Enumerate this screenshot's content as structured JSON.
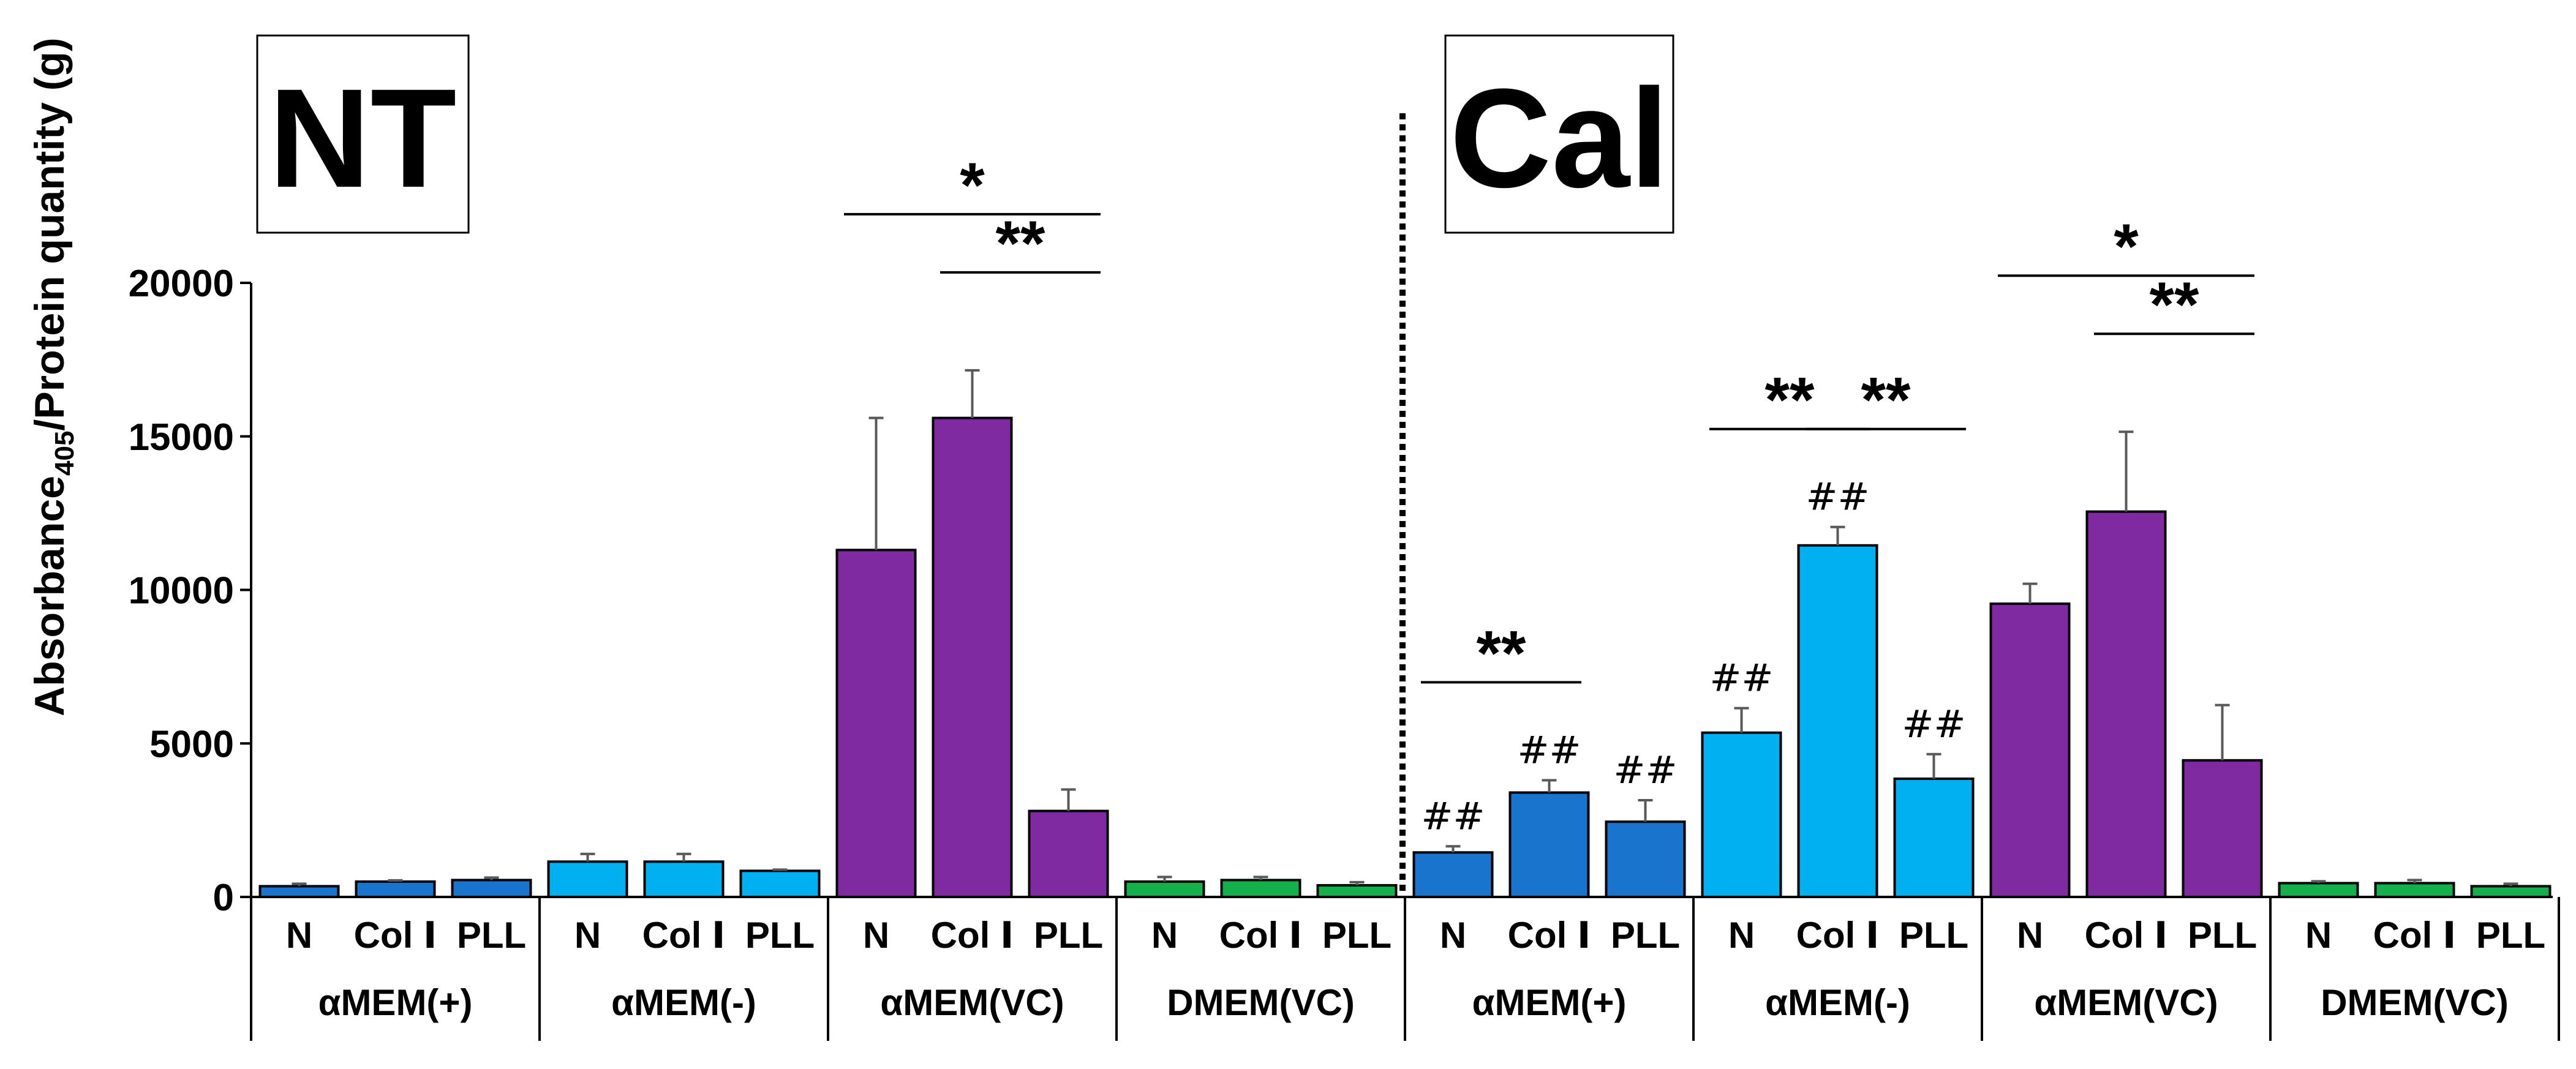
{
  "chart_data": {
    "type": "bar",
    "ylabel_main": "Absorbance",
    "ylabel_sub": "405",
    "ylabel_tail": "/Protein quantity (g)",
    "ylim": [
      0,
      20000
    ],
    "yticks": [
      0,
      5000,
      10000,
      15000,
      20000
    ],
    "yticks_text": [
      "0",
      "5000",
      "10000",
      "15000",
      "20000"
    ],
    "panels": [
      {
        "label": "NT",
        "groups": [
          {
            "name": "αMEM(+)",
            "color": "#1874CD",
            "categories": [
              "N",
              "Col Ⅰ",
              "PLL"
            ],
            "values": [
              350,
              500,
              550
            ],
            "errors": [
              80,
              40,
              80
            ],
            "marks": [
              "",
              "",
              ""
            ]
          },
          {
            "name": "αMEM(-)",
            "color": "#00B0F0",
            "categories": [
              "N",
              "Col Ⅰ",
              "PLL"
            ],
            "values": [
              1150,
              1150,
              850
            ],
            "errors": [
              250,
              250,
              40
            ],
            "marks": [
              "",
              "",
              ""
            ]
          },
          {
            "name": "αMEM(VC)",
            "color": "#7F2AA0",
            "categories": [
              "N",
              "Col Ⅰ",
              "PLL"
            ],
            "values": [
              11300,
              15600,
              2800
            ],
            "errors": [
              4300,
              1550,
              700
            ],
            "marks": [
              "",
              "",
              ""
            ]
          },
          {
            "name": "DMEM(VC)",
            "color": "#14B04C",
            "categories": [
              "N",
              "Col Ⅰ",
              "PLL"
            ],
            "values": [
              500,
              550,
              380
            ],
            "errors": [
              150,
              100,
              100
            ],
            "marks": [
              "",
              "",
              ""
            ]
          }
        ]
      },
      {
        "label": "Cal",
        "groups": [
          {
            "name": "αMEM(+)",
            "color": "#1874CD",
            "categories": [
              "N",
              "Col Ⅰ",
              "PLL"
            ],
            "values": [
              1450,
              3400,
              2450
            ],
            "errors": [
              200,
              400,
              700
            ],
            "marks": [
              "##",
              "##",
              "##"
            ]
          },
          {
            "name": "αMEM(-)",
            "color": "#00B0F0",
            "categories": [
              "N",
              "Col Ⅰ",
              "PLL"
            ],
            "values": [
              5350,
              11450,
              3850
            ],
            "errors": [
              800,
              600,
              800
            ],
            "marks": [
              "##",
              "##",
              "##"
            ]
          },
          {
            "name": "αMEM(VC)",
            "color": "#7F2AA0",
            "categories": [
              "N",
              "Col Ⅰ",
              "PLL"
            ],
            "values": [
              9550,
              12550,
              4450
            ],
            "errors": [
              650,
              2600,
              1800
            ],
            "marks": [
              "",
              "",
              ""
            ]
          },
          {
            "name": "DMEM(VC)",
            "color": "#14B04C",
            "categories": [
              "N",
              "Col Ⅰ",
              "PLL"
            ],
            "values": [
              450,
              450,
              350
            ],
            "errors": [
              60,
              100,
              80
            ],
            "marks": [
              "",
              "",
              ""
            ]
          }
        ]
      }
    ],
    "significance": [
      {
        "panel": 0,
        "group": 2,
        "from": 0,
        "to": 2,
        "label": "*"
      },
      {
        "panel": 0,
        "group": 2,
        "from": 1,
        "to": 2,
        "label": "**"
      },
      {
        "panel": 1,
        "group": 0,
        "from": 0,
        "to": 1,
        "label": "**"
      },
      {
        "panel": 1,
        "group": 1,
        "from": 0,
        "to": 1,
        "label": "**"
      },
      {
        "panel": 1,
        "group": 1,
        "from": 1,
        "to": 2,
        "label": "**"
      },
      {
        "panel": 1,
        "group": 2,
        "from": 0,
        "to": 2,
        "label": "*"
      },
      {
        "panel": 1,
        "group": 2,
        "from": 1,
        "to": 2,
        "label": "**"
      }
    ]
  }
}
